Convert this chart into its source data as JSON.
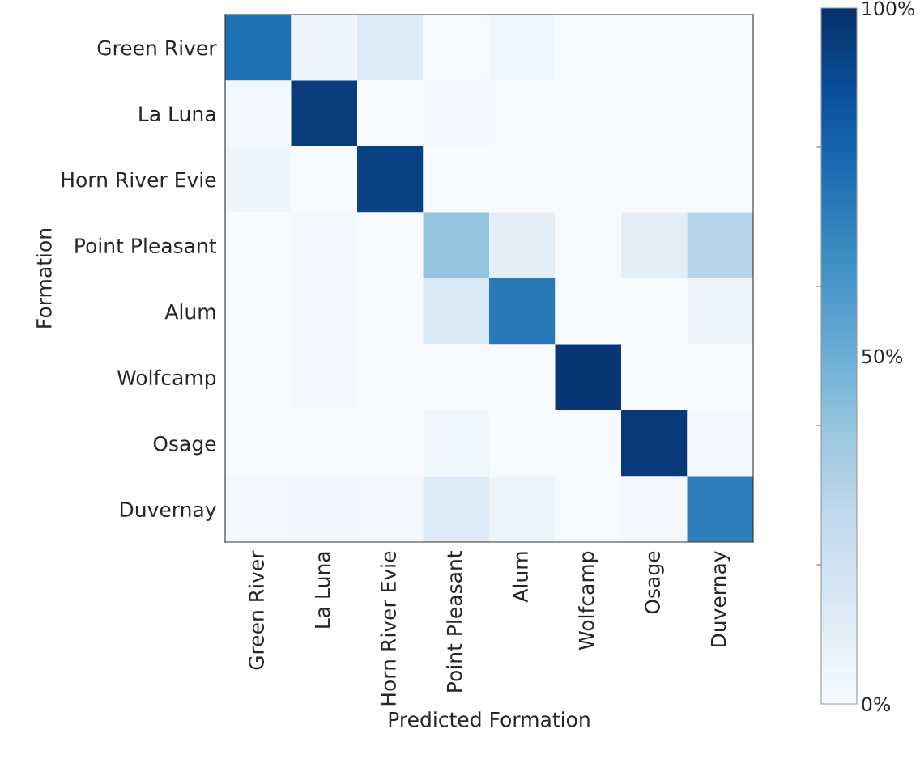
{
  "chart_data": {
    "type": "heatmap",
    "xlabel": "Predicted Formation",
    "ylabel": "Formation",
    "categories": [
      "Green River",
      "La Luna",
      "Horn River Evie",
      "Point Pleasant",
      "Alum",
      "Wolfcamp",
      "Osage",
      "Duvernay"
    ],
    "y_categories": [
      "Green River",
      "La Luna",
      "Horn River Evie",
      "Point Pleasant",
      "Alum",
      "Wolfcamp",
      "Osage",
      "Duvernay"
    ],
    "cells": [
      [
        75,
        5,
        13,
        1,
        4,
        1,
        1,
        1
      ],
      [
        2,
        95,
        0,
        2,
        1,
        0,
        0,
        0
      ],
      [
        5,
        0,
        93,
        0,
        0,
        1,
        0,
        1
      ],
      [
        0,
        2,
        0,
        40,
        10,
        0,
        10,
        30
      ],
      [
        0,
        2,
        0,
        15,
        72,
        0,
        0,
        5
      ],
      [
        0,
        2,
        1,
        0,
        0,
        98,
        0,
        0
      ],
      [
        0,
        0,
        0,
        4,
        0,
        0,
        96,
        2
      ],
      [
        2,
        3,
        2,
        13,
        6,
        1,
        2,
        70
      ]
    ],
    "clim": [
      0,
      100
    ],
    "cticks": [
      {
        "value": 0,
        "label": "0%"
      },
      {
        "value": 20,
        "label": null
      },
      {
        "value": 40,
        "label": null
      },
      {
        "value": 50,
        "label": "50%"
      },
      {
        "value": 60,
        "label": null
      },
      {
        "value": 80,
        "label": null
      },
      {
        "value": 100,
        "label": "100%"
      }
    ]
  }
}
